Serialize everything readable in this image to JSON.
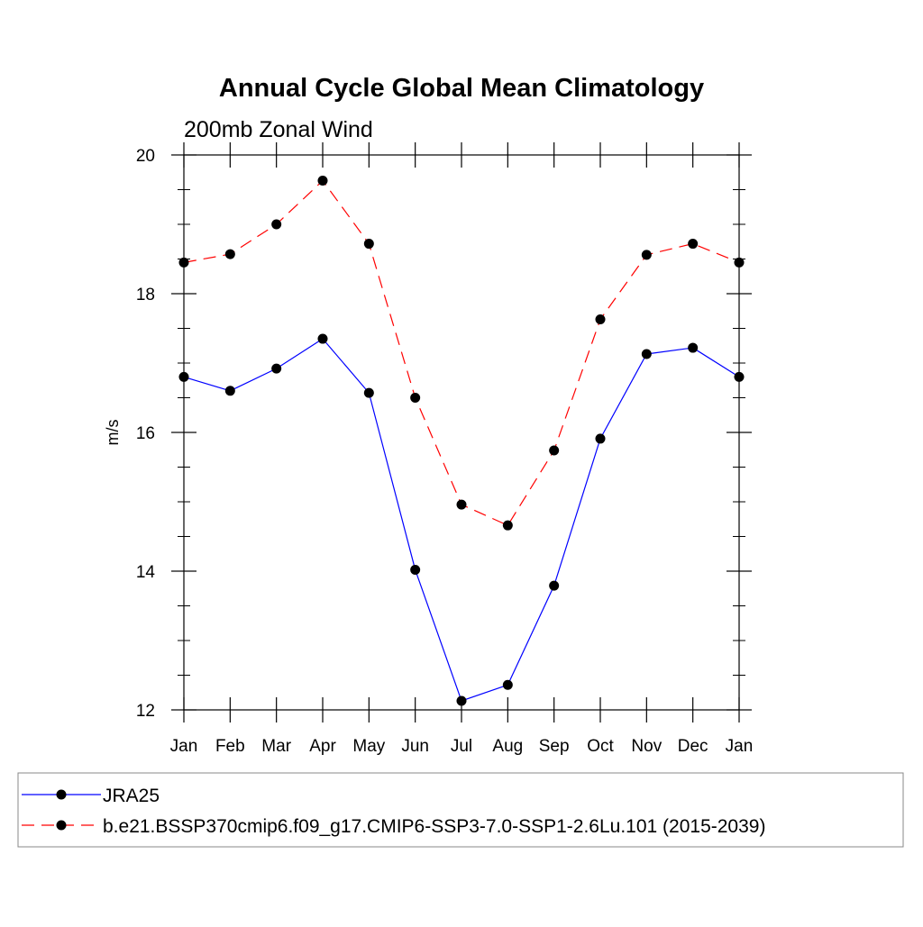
{
  "chart_data": {
    "type": "line",
    "title": "Annual Cycle Global Mean Climatology",
    "subtitle": "200mb Zonal Wind",
    "xlabel": "",
    "ylabel": "m/s",
    "categories": [
      "Jan",
      "Feb",
      "Mar",
      "Apr",
      "May",
      "Jun",
      "Jul",
      "Aug",
      "Sep",
      "Oct",
      "Nov",
      "Dec",
      "Jan"
    ],
    "ylim": [
      12,
      20
    ],
    "yticks": [
      "12",
      "14",
      "16",
      "18",
      "20"
    ],
    "grid": false,
    "legend_position": "bottom",
    "series": [
      {
        "name": "JRA25",
        "color": "#0000ff",
        "dash": "solid",
        "marker": "filled-circle",
        "values": [
          16.8,
          16.6,
          16.92,
          17.35,
          16.57,
          14.02,
          12.13,
          12.36,
          13.79,
          15.91,
          17.13,
          17.22,
          16.8
        ]
      },
      {
        "name": "b.e21.BSSP370cmip6.f09_g17.CMIP6-SSP3-7.0-SSP1-2.6Lu.101 (2015-2039)",
        "color": "#ff0000",
        "dash": "dashed",
        "marker": "filled-circle",
        "values": [
          18.45,
          18.57,
          19.0,
          19.63,
          18.72,
          16.5,
          14.96,
          14.66,
          15.74,
          17.63,
          18.56,
          18.72,
          18.45
        ]
      }
    ]
  }
}
